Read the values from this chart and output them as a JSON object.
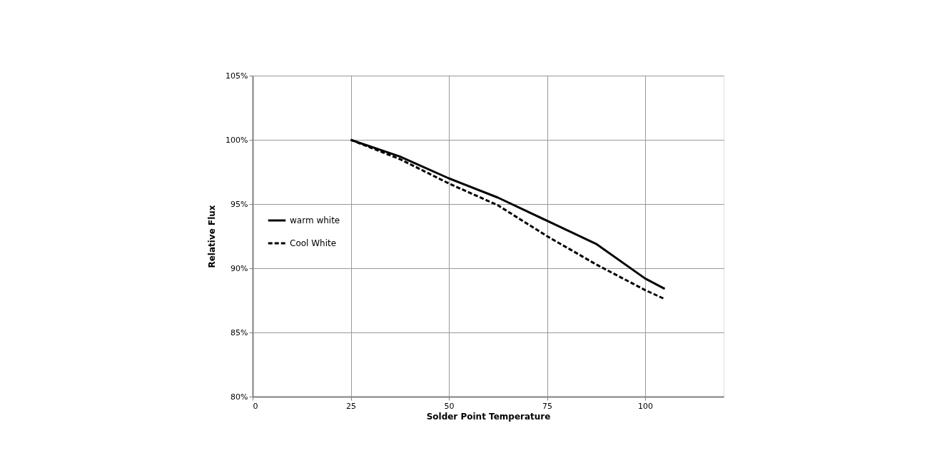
{
  "chart_data": {
    "type": "line",
    "xlabel": "Solder Point Temperature",
    "ylabel": "Relative Flux",
    "xlim": [
      0,
      120
    ],
    "xticks": [
      0,
      25,
      50,
      75,
      100
    ],
    "ylim": [
      80,
      105
    ],
    "yticks": [
      {
        "value": 80,
        "label": "80%"
      },
      {
        "value": 85,
        "label": "85%"
      },
      {
        "value": 90,
        "label": "90%"
      },
      {
        "value": 95,
        "label": "95%"
      },
      {
        "value": 100,
        "label": "100%"
      },
      {
        "value": 105,
        "label": "105%"
      }
    ],
    "grid": true,
    "legend": "left",
    "marker": "none",
    "x": [
      25,
      37.5,
      50,
      62.5,
      75,
      87.5,
      100,
      105
    ],
    "series": [
      {
        "name": "warm white",
        "color": "#000000",
        "line_style": "solid",
        "values": [
          100,
          98.7,
          97.0,
          95.5,
          93.7,
          91.9,
          89.2,
          88.4
        ]
      },
      {
        "name": "Cool White",
        "color": "#000000",
        "line_style": "dashed",
        "values": [
          100,
          98.5,
          96.6,
          94.9,
          92.5,
          90.3,
          88.3,
          87.6
        ]
      }
    ]
  }
}
